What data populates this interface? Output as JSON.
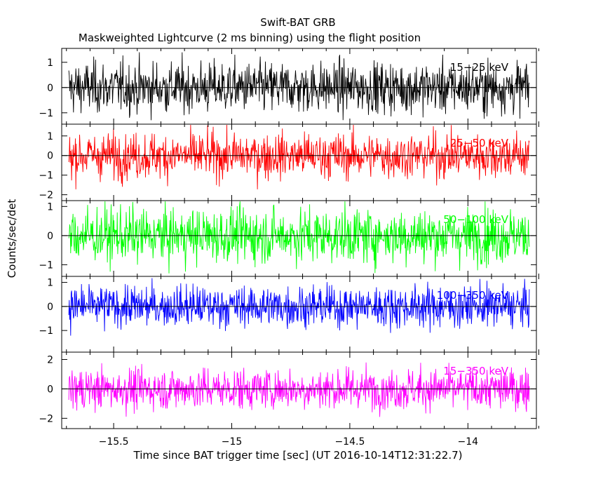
{
  "chart_data": {
    "type": "line",
    "title": "Swift-BAT GRB",
    "subtitle": "Maskweighted Lightcurve (2 ms binning) using the flight position",
    "xlabel": "Time since BAT trigger time [sec] (UT 2016-10-14T12:31:22.7)",
    "ylabel": "Counts/sec/det",
    "xlim": [
      -15.72,
      -13.71
    ],
    "x_ticks": [
      -15.5,
      -15,
      -14.5,
      -14
    ],
    "x_tick_labels": [
      "−15.5",
      "−15",
      "−14.5",
      "−14"
    ],
    "bin_width_sec": 0.002,
    "panels": [
      {
        "name": "15-25 keV",
        "label": "15−25 keV",
        "color": "#000000",
        "ylim": [
          -1.45,
          1.55
        ],
        "y_ticks": [
          1,
          0,
          -1
        ],
        "y_tick_labels": [
          "1",
          "0",
          "−1"
        ],
        "approx_amplitude": 1.3
      },
      {
        "name": "25-50 keV",
        "label": "25−50 keV",
        "color": "#ff0000",
        "ylim": [
          -2.3,
          1.6
        ],
        "y_ticks": [
          1,
          0,
          -1,
          -2
        ],
        "y_tick_labels": [
          "1",
          "0",
          "−1",
          "−2"
        ],
        "approx_amplitude": 1.5
      },
      {
        "name": "50-100 keV",
        "label": "50−100 keV",
        "color": "#00ff00",
        "ylim": [
          -1.4,
          1.2
        ],
        "y_ticks": [
          1,
          0,
          -1
        ],
        "y_tick_labels": [
          "1",
          "0",
          "−1"
        ],
        "approx_amplitude": 1.2
      },
      {
        "name": "100-350 keV",
        "label": "100−350 keV",
        "color": "#0000ff",
        "ylim": [
          -1.9,
          1.25
        ],
        "y_ticks": [
          1,
          0,
          -1
        ],
        "y_tick_labels": [
          "1",
          "0",
          "−1"
        ],
        "approx_amplitude": 1.1
      },
      {
        "name": "15-350 keV",
        "label": "15−350 keV",
        "color": "#ff00ff",
        "ylim": [
          -2.7,
          2.5
        ],
        "y_ticks": [
          2,
          0,
          -2
        ],
        "y_tick_labels": [
          "2",
          "0",
          "−2"
        ],
        "approx_amplitude": 1.8
      }
    ]
  }
}
